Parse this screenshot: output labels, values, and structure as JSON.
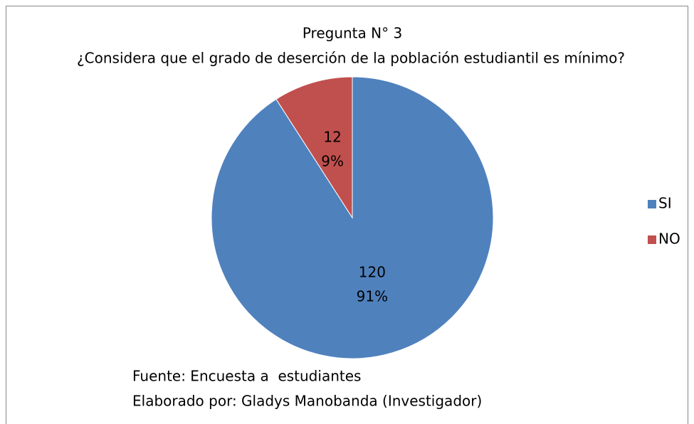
{
  "chart_data": {
    "type": "pie",
    "title": "Pregunta N° 3",
    "subtitle": "¿Considera que el grado de deserción de la población estudiantil es mínimo?",
    "categories": [
      "SI",
      "NO"
    ],
    "values": [
      120,
      12
    ],
    "percent_labels": [
      "91%",
      "9%"
    ],
    "colors": [
      "#4f81bd",
      "#c0504d"
    ],
    "legend": "right",
    "notes": [
      "Fuente: Encuesta a  estudiantes",
      "Elaborado por: Gladys Manobanda (Investigador)"
    ]
  }
}
